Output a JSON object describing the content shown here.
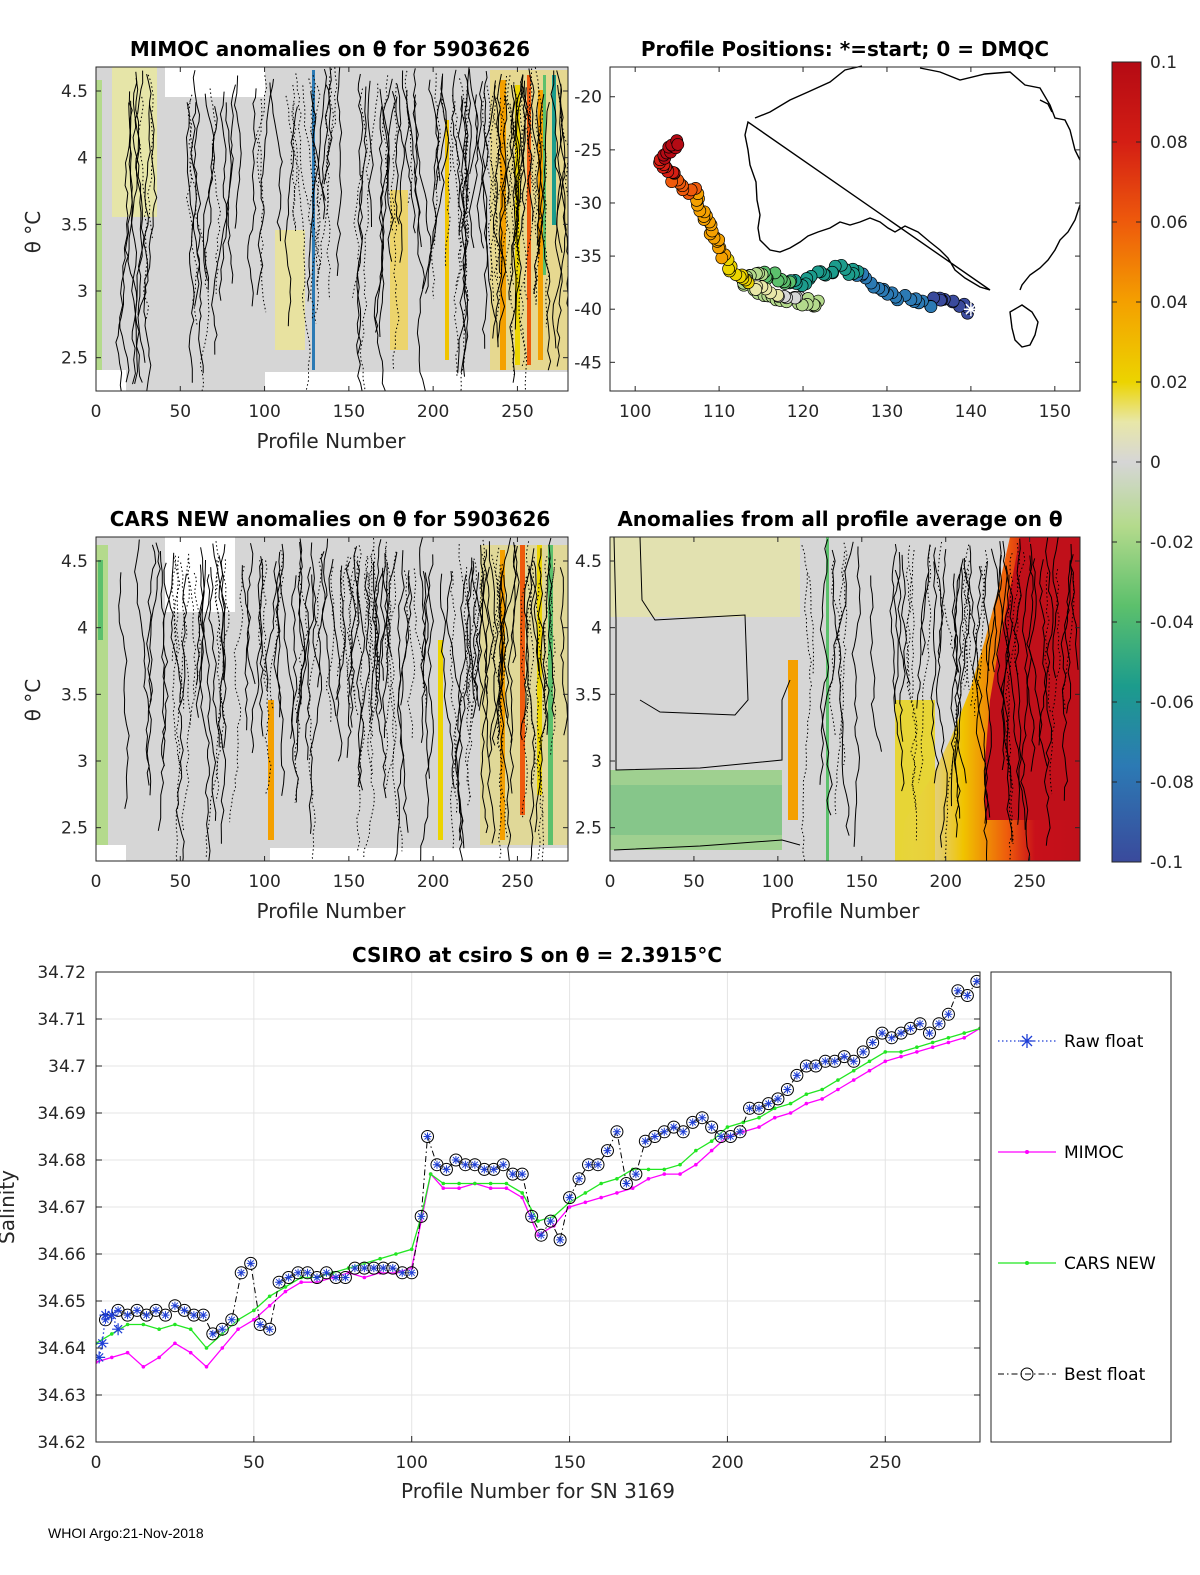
{
  "panels": {
    "mimoc": {
      "title": "MIMOC anomalies on θ  for 5903626",
      "xlabel": "Profile Number",
      "ylabel": "θ °C",
      "xticks": [
        "0",
        "50",
        "100",
        "150",
        "200",
        "250"
      ],
      "yticks": [
        "2.5",
        "3",
        "3.5",
        "4",
        "4.5"
      ]
    },
    "positions": {
      "title": "Profile Positions: *=start; 0 = DMQC",
      "xticks": [
        "100",
        "110",
        "120",
        "130",
        "140",
        "150"
      ],
      "yticks": [
        "-20",
        "-25",
        "-30",
        "-35",
        "-40",
        "-45"
      ]
    },
    "cars": {
      "title": "CARS NEW anomalies on θ for 5903626",
      "xlabel": "Profile Number",
      "ylabel": "θ °C",
      "xticks": [
        "0",
        "50",
        "100",
        "150",
        "200",
        "250"
      ],
      "yticks": [
        "2.5",
        "3",
        "3.5",
        "4",
        "4.5"
      ]
    },
    "average": {
      "title": "Anomalies from all profile average on θ",
      "xlabel": "Profile Number",
      "xticks": [
        "0",
        "50",
        "100",
        "150",
        "200",
        "250"
      ],
      "yticks": [
        "2.5",
        "3",
        "3.5",
        "4",
        "4.5"
      ]
    }
  },
  "colorbar": {
    "ticks": [
      "0.1",
      "0.08",
      "0.06",
      "0.04",
      "0.02",
      "0",
      "-0.02",
      "-0.04",
      "-0.06",
      "-0.08",
      "-0.1"
    ],
    "colors": [
      "#b40a14",
      "#d41e14",
      "#ee5a0c",
      "#f4a000",
      "#ecd400",
      "#e8e7a8",
      "#d6d6d6",
      "#b4da8c",
      "#5cc06c",
      "#1c9c8c",
      "#2c7ab4",
      "#3a4a9c"
    ]
  },
  "chart_data": {
    "type": "line",
    "title": "CSIRO at csiro S on θ = 2.3915°C",
    "xlabel": "Profile Number for SN 3169",
    "ylabel": "Salinity",
    "xlim": [
      0,
      280
    ],
    "ylim": [
      34.62,
      34.72
    ],
    "xticks": [
      "0",
      "50",
      "100",
      "150",
      "200",
      "250"
    ],
    "yticks": [
      "34.62",
      "34.63",
      "34.64",
      "34.65",
      "34.66",
      "34.67",
      "34.68",
      "34.69",
      "34.7",
      "34.71",
      "34.72"
    ],
    "grid": true,
    "legend_position": "right",
    "series": [
      {
        "name": "Raw float",
        "color": "#1f3fd6",
        "marker": "star",
        "x": [
          1,
          2,
          3,
          5,
          7
        ],
        "y": [
          34.638,
          34.641,
          34.647,
          34.647,
          34.644
        ]
      },
      {
        "name": "MIMOC",
        "color": "#ff00ff",
        "x": [
          0,
          5,
          10,
          15,
          20,
          25,
          30,
          35,
          40,
          45,
          50,
          55,
          60,
          65,
          70,
          75,
          80,
          85,
          90,
          95,
          100,
          103,
          106,
          110,
          115,
          120,
          125,
          130,
          135,
          140,
          145,
          150,
          155,
          160,
          165,
          170,
          175,
          180,
          185,
          190,
          195,
          200,
          205,
          210,
          215,
          220,
          225,
          230,
          235,
          240,
          245,
          250,
          255,
          260,
          265,
          270,
          275,
          280
        ],
        "y": [
          34.637,
          34.638,
          34.639,
          34.636,
          34.638,
          34.641,
          34.639,
          34.636,
          34.64,
          34.644,
          34.646,
          34.649,
          34.652,
          34.654,
          34.654,
          34.655,
          34.656,
          34.655,
          34.656,
          34.656,
          34.657,
          34.667,
          34.677,
          34.674,
          34.674,
          34.675,
          34.674,
          34.674,
          34.672,
          34.664,
          34.666,
          34.67,
          34.671,
          34.672,
          34.673,
          34.674,
          34.676,
          34.677,
          34.677,
          34.679,
          34.682,
          34.685,
          34.686,
          34.687,
          34.689,
          34.69,
          34.692,
          34.693,
          34.695,
          34.697,
          34.699,
          34.701,
          34.702,
          34.703,
          34.704,
          34.705,
          34.706,
          34.708
        ]
      },
      {
        "name": "CARS NEW",
        "color": "#22e622",
        "x": [
          0,
          5,
          10,
          15,
          20,
          25,
          30,
          35,
          40,
          45,
          50,
          55,
          60,
          65,
          70,
          75,
          80,
          85,
          90,
          95,
          100,
          103,
          106,
          110,
          115,
          120,
          125,
          130,
          135,
          140,
          145,
          150,
          155,
          160,
          165,
          170,
          175,
          180,
          185,
          190,
          195,
          200,
          205,
          210,
          215,
          220,
          225,
          230,
          235,
          240,
          245,
          250,
          255,
          260,
          265,
          270,
          275,
          280
        ],
        "y": [
          34.641,
          34.643,
          34.645,
          34.645,
          34.644,
          34.645,
          34.644,
          34.64,
          34.643,
          34.646,
          34.648,
          34.651,
          34.653,
          34.655,
          34.655,
          34.656,
          34.657,
          34.658,
          34.659,
          34.66,
          34.661,
          34.668,
          34.677,
          34.675,
          34.675,
          34.675,
          34.675,
          34.675,
          34.673,
          34.667,
          34.668,
          34.671,
          34.673,
          34.675,
          34.676,
          34.678,
          34.678,
          34.678,
          34.679,
          34.682,
          34.684,
          34.687,
          34.688,
          34.689,
          34.691,
          34.692,
          34.694,
          34.695,
          34.697,
          34.699,
          34.701,
          34.703,
          34.703,
          34.704,
          34.705,
          34.706,
          34.707,
          34.708
        ]
      },
      {
        "name": "Best float",
        "color": "#000000",
        "marker": "circle",
        "x": [
          3,
          7,
          10,
          13,
          16,
          19,
          22,
          25,
          28,
          31,
          34,
          37,
          40,
          43,
          46,
          49,
          52,
          55,
          58,
          61,
          64,
          67,
          70,
          73,
          76,
          79,
          82,
          85,
          88,
          91,
          94,
          97,
          100,
          103,
          105,
          108,
          111,
          114,
          117,
          120,
          123,
          126,
          129,
          132,
          135,
          138,
          141,
          144,
          147,
          150,
          153,
          156,
          159,
          162,
          165,
          168,
          171,
          174,
          177,
          180,
          183,
          186,
          189,
          192,
          195,
          198,
          201,
          204,
          207,
          210,
          213,
          216,
          219,
          222,
          225,
          228,
          231,
          234,
          237,
          240,
          243,
          246,
          249,
          252,
          255,
          258,
          261,
          264,
          267,
          270,
          273,
          276,
          279
        ],
        "y": [
          34.646,
          34.648,
          34.647,
          34.648,
          34.647,
          34.648,
          34.647,
          34.649,
          34.648,
          34.647,
          34.647,
          34.643,
          34.644,
          34.646,
          34.656,
          34.658,
          34.645,
          34.644,
          34.654,
          34.655,
          34.656,
          34.656,
          34.655,
          34.656,
          34.655,
          34.655,
          34.657,
          34.657,
          34.657,
          34.657,
          34.657,
          34.656,
          34.656,
          34.668,
          34.685,
          34.679,
          34.678,
          34.68,
          34.679,
          34.679,
          34.678,
          34.678,
          34.679,
          34.677,
          34.677,
          34.668,
          34.664,
          34.667,
          34.663,
          34.672,
          34.676,
          34.679,
          34.679,
          34.682,
          34.686,
          34.675,
          34.677,
          34.684,
          34.685,
          34.686,
          34.687,
          34.686,
          34.688,
          34.689,
          34.687,
          34.685,
          34.685,
          34.686,
          34.691,
          34.691,
          34.692,
          34.693,
          34.695,
          34.698,
          34.7,
          34.7,
          34.701,
          34.701,
          34.702,
          34.701,
          34.703,
          34.705,
          34.707,
          34.706,
          34.707,
          34.708,
          34.709,
          34.707,
          34.709,
          34.711,
          34.716,
          34.715,
          34.718
        ]
      }
    ]
  },
  "legend": [
    "Raw float",
    "MIMOC",
    "CARS NEW",
    "Best float"
  ],
  "footer": "WHOI Argo:21-Nov-2018"
}
